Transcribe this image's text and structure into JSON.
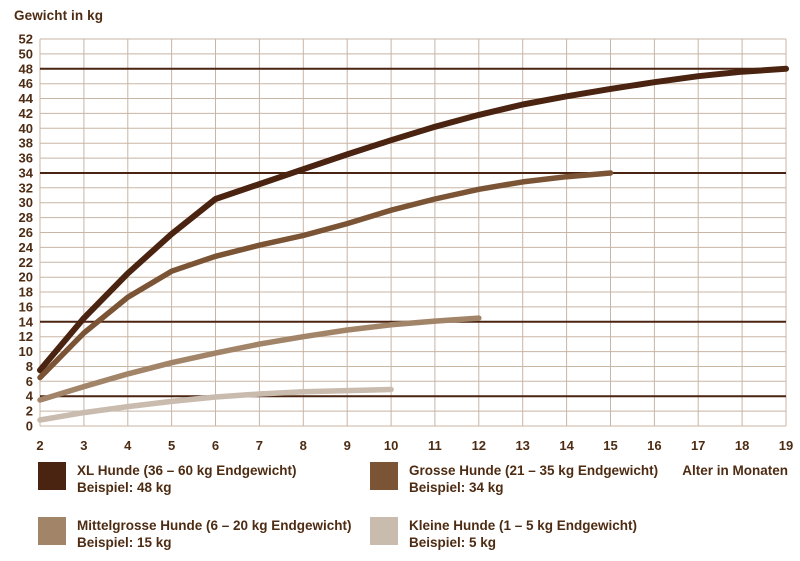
{
  "chart_data": {
    "type": "line",
    "title": "Gewicht in kg",
    "xlabel": "Alter in Monaten",
    "ylabel": "Gewicht in kg",
    "xlim": [
      2,
      19
    ],
    "ylim": [
      0,
      52
    ],
    "x_tick_step": 1,
    "y_tick_step": 2,
    "grid": true,
    "legend_position": "bottom",
    "reference_lines_y": [
      48,
      34,
      14,
      4
    ],
    "colors": {
      "text": "#4e2c13",
      "grid": "#c8b5a4",
      "reference_line": "#4a2410",
      "background": "#ffffff"
    },
    "series": [
      {
        "id": "xl-hunde",
        "name": "XL Hunde (36 – 60 kg Endgewicht)",
        "example": "Beispiel: 48 kg",
        "color": "#4a2410",
        "stroke_width": 6,
        "x": [
          2,
          3,
          4,
          5,
          6,
          7,
          8,
          9,
          10,
          11,
          12,
          13,
          14,
          15,
          16,
          17,
          18,
          19
        ],
        "values": [
          7.5,
          14.5,
          20.5,
          25.8,
          30.5,
          32.5,
          34.5,
          36.5,
          38.4,
          40.2,
          41.8,
          43.2,
          44.3,
          45.3,
          46.2,
          47,
          47.6,
          48
        ]
      },
      {
        "id": "grosse-hunde",
        "name": "Grosse Hunde (21 – 35 kg Endgewicht)",
        "example": "Beispiel: 34 kg",
        "color": "#7b5335",
        "stroke_width": 5.5,
        "x": [
          2,
          3,
          4,
          5,
          6,
          7,
          8,
          9,
          10,
          11,
          12,
          13,
          14,
          15
        ],
        "values": [
          6.5,
          12.5,
          17.3,
          20.8,
          22.8,
          24.3,
          25.6,
          27.2,
          29,
          30.5,
          31.8,
          32.8,
          33.5,
          34
        ]
      },
      {
        "id": "mittelgrosse-hunde",
        "name": "Mittelgrosse Hunde (6 – 20 kg Endgewicht)",
        "example": "Beispiel: 15 kg",
        "color": "#a28468",
        "stroke_width": 5.5,
        "x": [
          2,
          3,
          4,
          5,
          6,
          7,
          8,
          9,
          10,
          11,
          12
        ],
        "values": [
          3.5,
          5.3,
          7,
          8.5,
          9.8,
          11,
          12,
          12.9,
          13.6,
          14.1,
          14.5
        ]
      },
      {
        "id": "kleine-hunde",
        "name": "Kleine Hunde (1 – 5 kg Endgewicht)",
        "example": "Beispiel: 5 kg",
        "color": "#c9bbae",
        "stroke_width": 5.5,
        "x": [
          2,
          3,
          4,
          5,
          6,
          7,
          8,
          9,
          10
        ],
        "values": [
          0.8,
          1.8,
          2.6,
          3.3,
          3.9,
          4.3,
          4.6,
          4.75,
          4.9
        ]
      }
    ]
  }
}
